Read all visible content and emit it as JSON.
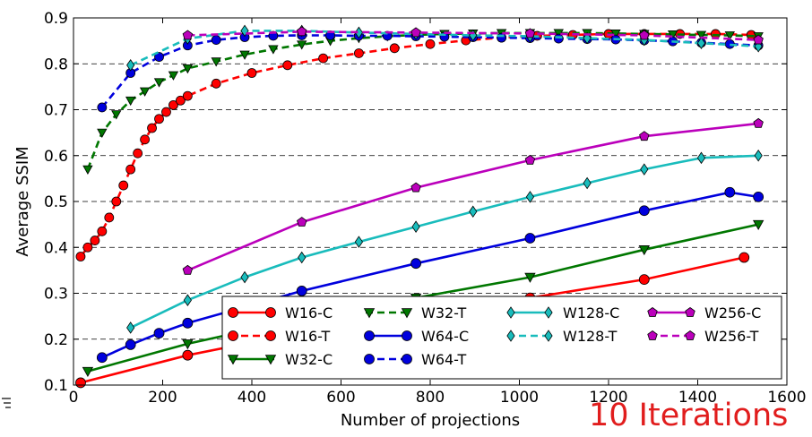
{
  "annotation": "10 Iterations",
  "chart_data": {
    "type": "line",
    "xlabel": "Number of projections",
    "ylabel": "Average SSIM",
    "xlim": [
      0,
      1600
    ],
    "ylim": [
      0.1,
      0.9
    ],
    "xticks": [
      0,
      200,
      400,
      600,
      800,
      1000,
      1200,
      1400,
      1600
    ],
    "yticks": [
      0.1,
      0.2,
      0.3,
      0.4,
      0.5,
      0.6,
      0.7,
      0.8,
      0.9
    ],
    "grid": "horizontal dashed",
    "legend": {
      "placement": "lower-right",
      "columns": 4
    },
    "series": [
      {
        "name": "W16-C",
        "color": "#ff0000",
        "linestyle": "solid",
        "marker": "circle",
        "x": [
          16,
          256,
          512,
          768,
          1024,
          1280,
          1504
        ],
        "y": [
          0.105,
          0.165,
          0.215,
          0.255,
          0.29,
          0.33,
          0.378
        ]
      },
      {
        "name": "W16-T",
        "color": "#ff0000",
        "linestyle": "dashed",
        "marker": "circle",
        "x": [
          16,
          32,
          48,
          64,
          80,
          96,
          112,
          128,
          144,
          160,
          176,
          192,
          208,
          224,
          240,
          256,
          320,
          400,
          480,
          560,
          640,
          720,
          800,
          880,
          960,
          1040,
          1120,
          1200,
          1280,
          1360,
          1440,
          1520
        ],
        "y": [
          0.38,
          0.4,
          0.415,
          0.435,
          0.465,
          0.5,
          0.535,
          0.57,
          0.605,
          0.635,
          0.66,
          0.68,
          0.695,
          0.71,
          0.72,
          0.73,
          0.757,
          0.78,
          0.797,
          0.812,
          0.823,
          0.834,
          0.843,
          0.851,
          0.857,
          0.861,
          0.863,
          0.865,
          0.865,
          0.865,
          0.865,
          0.863
        ]
      },
      {
        "name": "W32-C",
        "color": "#007700",
        "linestyle": "solid",
        "marker": "triangle-down",
        "x": [
          32,
          256,
          512,
          768,
          1024,
          1280,
          1536
        ],
        "y": [
          0.13,
          0.19,
          0.245,
          0.29,
          0.335,
          0.395,
          0.45
        ]
      },
      {
        "name": "W32-T",
        "color": "#007700",
        "linestyle": "dashed",
        "marker": "triangle-down",
        "x": [
          32,
          64,
          96,
          128,
          160,
          192,
          224,
          256,
          320,
          384,
          448,
          512,
          576,
          640,
          704,
          768,
          832,
          896,
          960,
          1024,
          1088,
          1152,
          1216,
          1280,
          1344,
          1408,
          1472,
          1536
        ],
        "y": [
          0.57,
          0.65,
          0.69,
          0.72,
          0.74,
          0.76,
          0.775,
          0.79,
          0.805,
          0.82,
          0.832,
          0.842,
          0.85,
          0.856,
          0.86,
          0.863,
          0.865,
          0.866,
          0.867,
          0.867,
          0.867,
          0.867,
          0.866,
          0.865,
          0.864,
          0.863,
          0.862,
          0.86
        ]
      },
      {
        "name": "W64-C",
        "color": "#0000dd",
        "linestyle": "solid",
        "marker": "circle",
        "x": [
          64,
          128,
          192,
          256,
          512,
          768,
          1024,
          1280,
          1472,
          1536
        ],
        "y": [
          0.16,
          0.188,
          0.213,
          0.235,
          0.305,
          0.365,
          0.42,
          0.48,
          0.52,
          0.51
        ]
      },
      {
        "name": "W64-T",
        "color": "#0000dd",
        "linestyle": "dashed",
        "marker": "circle",
        "x": [
          64,
          128,
          192,
          256,
          320,
          384,
          448,
          512,
          576,
          640,
          704,
          768,
          832,
          896,
          960,
          1024,
          1088,
          1152,
          1216,
          1280,
          1344,
          1408,
          1472,
          1536
        ],
        "y": [
          0.705,
          0.78,
          0.815,
          0.84,
          0.852,
          0.858,
          0.861,
          0.862,
          0.862,
          0.861,
          0.861,
          0.86,
          0.859,
          0.858,
          0.857,
          0.856,
          0.855,
          0.854,
          0.853,
          0.851,
          0.849,
          0.846,
          0.843,
          0.84
        ]
      },
      {
        "name": "W128-C",
        "color": "#19bcbc",
        "linestyle": "solid",
        "marker": "diamond",
        "x": [
          128,
          256,
          384,
          512,
          640,
          768,
          896,
          1024,
          1152,
          1280,
          1408,
          1536
        ],
        "y": [
          0.225,
          0.285,
          0.335,
          0.378,
          0.412,
          0.445,
          0.478,
          0.51,
          0.54,
          0.57,
          0.595,
          0.6
        ]
      },
      {
        "name": "W128-T",
        "color": "#19bcbc",
        "linestyle": "dashed",
        "marker": "diamond",
        "x": [
          128,
          256,
          384,
          512,
          640,
          768,
          896,
          1024,
          1152,
          1280,
          1408,
          1536
        ],
        "y": [
          0.797,
          0.855,
          0.872,
          0.872,
          0.868,
          0.865,
          0.862,
          0.86,
          0.856,
          0.852,
          0.845,
          0.838
        ]
      },
      {
        "name": "W256-C",
        "color": "#bb00bb",
        "linestyle": "solid",
        "marker": "pentagon",
        "x": [
          256,
          512,
          768,
          1024,
          1280,
          1536
        ],
        "y": [
          0.35,
          0.455,
          0.53,
          0.59,
          0.642,
          0.67
        ]
      },
      {
        "name": "W256-T",
        "color": "#bb00bb",
        "linestyle": "dashed",
        "marker": "pentagon",
        "x": [
          256,
          512,
          768,
          1024,
          1280,
          1536
        ],
        "y": [
          0.862,
          0.87,
          0.868,
          0.866,
          0.862,
          0.852
        ]
      }
    ]
  }
}
